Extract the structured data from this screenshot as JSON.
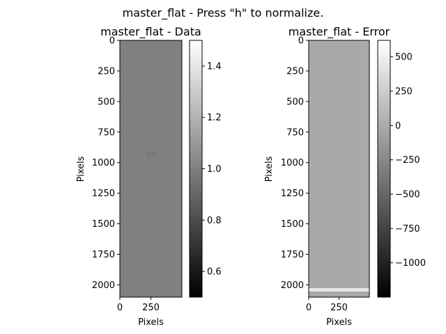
{
  "figure": {
    "suptitle": "master_flat - Press \"h\" to normalize."
  },
  "panels": [
    {
      "title": "master_flat - Data",
      "xlabel": "Pixels",
      "ylabel": "Pixels",
      "xticks": [
        0,
        250
      ],
      "yticks": [
        0,
        250,
        500,
        750,
        1000,
        1250,
        1500,
        1750,
        2000
      ],
      "xlim": [
        0,
        500
      ],
      "ylim": [
        0,
        2100
      ],
      "colorbar": {
        "ticks": [
          "0.6",
          "0.8",
          "1.0",
          "1.2",
          "1.4"
        ],
        "tick_values": [
          0.6,
          0.8,
          1.0,
          1.2,
          1.4
        ],
        "vmin": 0.5,
        "vmax": 1.5
      }
    },
    {
      "title": "master_flat - Error",
      "xlabel": "Pixels",
      "ylabel": "Pixels",
      "xticks": [
        0,
        250
      ],
      "yticks": [
        0,
        250,
        500,
        750,
        1000,
        1250,
        1500,
        1750,
        2000
      ],
      "xlim": [
        0,
        500
      ],
      "ylim": [
        0,
        2100
      ],
      "colorbar": {
        "ticks": [
          "500",
          "250",
          "0",
          "−250",
          "−500",
          "−750",
          "−1000"
        ],
        "tick_values": [
          500,
          250,
          0,
          -250,
          -500,
          -750,
          -1000
        ],
        "vmin": -1250,
        "vmax": 620
      }
    }
  ],
  "colors": {
    "data_image": "#808080",
    "error_image": "#a9a9a9",
    "error_band": "#e6e6e6"
  },
  "chart_data": [
    {
      "type": "heatmap",
      "title": "master_flat - Data",
      "xlabel": "Pixels",
      "ylabel": "Pixels",
      "xlim": [
        0,
        500
      ],
      "ylim": [
        0,
        2100
      ],
      "colormap": "gray",
      "value_range": [
        0.5,
        1.5
      ],
      "typical_value": 1.0
    },
    {
      "type": "heatmap",
      "title": "master_flat - Error",
      "xlabel": "Pixels",
      "ylabel": "Pixels",
      "xlim": [
        0,
        500
      ],
      "ylim": [
        0,
        2100
      ],
      "colormap": "gray",
      "value_range": [
        -1250,
        620
      ],
      "typical_value": -200,
      "bright_band_rows": [
        2030,
        2060
      ]
    }
  ]
}
